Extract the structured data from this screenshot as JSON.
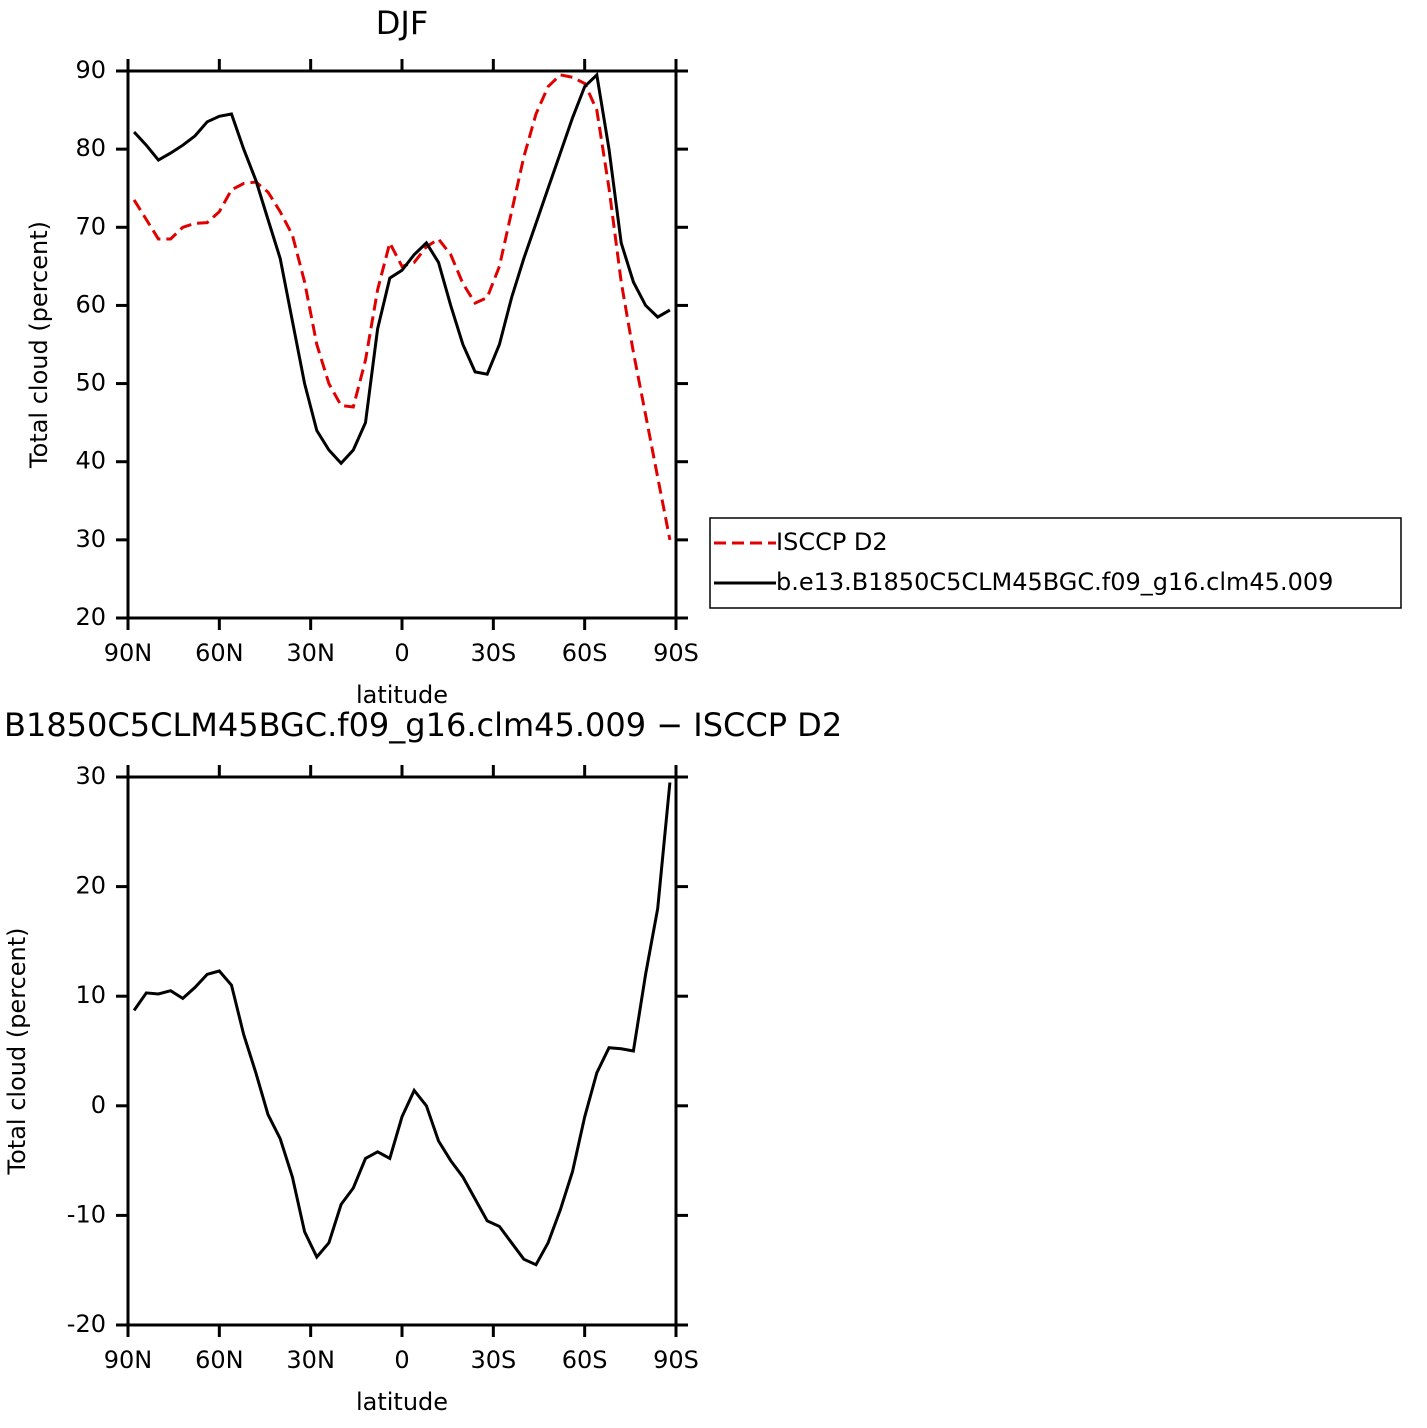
{
  "chart_data": [
    {
      "type": "line",
      "title": "DJF",
      "xlabel": "latitude",
      "ylabel": "Total cloud (percent)",
      "x": [
        88,
        84,
        80,
        76,
        72,
        68,
        64,
        60,
        56,
        52,
        48,
        44,
        40,
        36,
        32,
        28,
        24,
        20,
        16,
        12,
        8,
        4,
        0,
        -4,
        -8,
        -12,
        -16,
        -20,
        -24,
        -28,
        -32,
        -36,
        -40,
        -44,
        -48,
        -52,
        -56,
        -60,
        -64,
        -68,
        -72,
        -76,
        -80,
        -84,
        -88
      ],
      "series": [
        {
          "name": "ISCCP D2",
          "color": "#e00000",
          "dashed": true,
          "values": [
            73.5,
            71,
            68.5,
            68.5,
            70,
            70.5,
            70.6,
            72,
            74.8,
            75.6,
            75.8,
            74.5,
            72,
            69,
            63,
            55,
            50,
            47.2,
            47,
            53,
            62,
            68,
            65,
            65.5,
            67.5,
            68.5,
            66.5,
            62.8,
            60.3,
            61,
            65,
            72,
            79,
            84.5,
            88,
            89.5,
            89.2,
            88.4,
            85,
            75,
            63,
            54,
            46,
            38,
            30
          ]
        },
        {
          "name": "b.e13.B1850C5CLM45BGC.f09_g16.clm45.009",
          "color": "#000000",
          "dashed": false,
          "values": [
            82.2,
            80.5,
            78.6,
            79.5,
            80.5,
            81.7,
            83.5,
            84.2,
            84.5,
            80,
            76,
            71,
            66,
            58,
            50,
            44,
            41.5,
            39.8,
            41.5,
            45,
            57,
            63.5,
            64.5,
            66.5,
            68,
            65.5,
            60,
            55,
            51.5,
            51.2,
            55,
            61,
            66,
            70.5,
            75,
            79.5,
            84,
            88,
            89.5,
            80,
            68,
            63,
            60,
            58.5,
            59.4
          ]
        }
      ],
      "xlim": [
        90,
        -90
      ],
      "xticks": [
        {
          "value": 90,
          "label": "90N"
        },
        {
          "value": 60,
          "label": "60N"
        },
        {
          "value": 30,
          "label": "30N"
        },
        0,
        {
          "value": -30,
          "label": "30S"
        },
        {
          "value": -60,
          "label": "60S"
        },
        {
          "value": -90,
          "label": "90S"
        }
      ],
      "ylim": [
        20,
        90
      ],
      "yticks": [
        20,
        30,
        40,
        50,
        60,
        70,
        80,
        90
      ],
      "legend": "right"
    },
    {
      "type": "line",
      "title": "B1850C5CLM45BGC.f09_g16.clm45.009 − ISCCP D2",
      "xlabel": "latitude",
      "ylabel": "Total cloud (percent)",
      "x": [
        88,
        84,
        80,
        76,
        72,
        68,
        64,
        60,
        56,
        52,
        48,
        44,
        40,
        36,
        32,
        28,
        24,
        20,
        16,
        12,
        8,
        4,
        0,
        -4,
        -8,
        -12,
        -16,
        -20,
        -24,
        -28,
        -32,
        -36,
        -40,
        -44,
        -48,
        -52,
        -56,
        -60,
        -64,
        -68,
        -72,
        -76,
        -80,
        -84,
        -88
      ],
      "series": [
        {
          "color": "#000000",
          "dashed": false,
          "values": [
            8.7,
            10.3,
            10.2,
            10.5,
            9.8,
            10.8,
            12,
            12.3,
            11,
            6.5,
            3,
            -0.8,
            -3,
            -6.5,
            -11.5,
            -13.8,
            -12.5,
            -9,
            -7.5,
            -4.8,
            -4.2,
            -4.8,
            -1,
            1.4,
            0,
            -3.2,
            -5,
            -6.5,
            -8.5,
            -10.5,
            -11,
            -12.5,
            -14,
            -14.5,
            -12.5,
            -9.5,
            -6,
            -1,
            3,
            5.3,
            5.2,
            5,
            12,
            18,
            29.5
          ]
        }
      ],
      "xlim": [
        90,
        -90
      ],
      "xticks": [
        {
          "value": 90,
          "label": "90N"
        },
        {
          "value": 60,
          "label": "60N"
        },
        {
          "value": 30,
          "label": "30N"
        },
        0,
        {
          "value": -30,
          "label": "30S"
        },
        {
          "value": -60,
          "label": "60S"
        },
        {
          "value": -90,
          "label": "90S"
        }
      ],
      "ylim": [
        -20,
        30
      ],
      "yticks": [
        -20,
        -10,
        0,
        10,
        20,
        30
      ]
    }
  ]
}
